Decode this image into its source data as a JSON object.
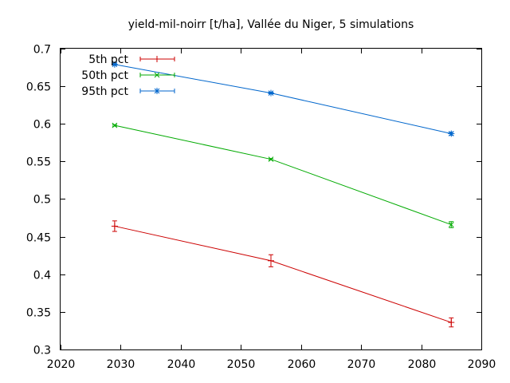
{
  "chart_data": {
    "type": "line",
    "title": "yield-mil-noirr [t/ha], Vallée du Niger, 5 simulations",
    "xlabel": "",
    "ylabel": "",
    "xlim": [
      2020,
      2090
    ],
    "ylim": [
      0.3,
      0.7
    ],
    "xticks": [
      "2020",
      "2030",
      "2040",
      "2050",
      "2060",
      "2070",
      "2080",
      "2090"
    ],
    "yticks": [
      "0.3",
      "0.35",
      "0.4",
      "0.45",
      "0.5",
      "0.55",
      "0.6",
      "0.65",
      "0.7"
    ],
    "grid": false,
    "legend_position": "top-left",
    "x": [
      2029,
      2055,
      2085
    ],
    "series": [
      {
        "name": "5th pct",
        "color": "#cc0000",
        "marker": "plus",
        "values": [
          0.464,
          0.418,
          0.336
        ],
        "errors": [
          0.007,
          0.008,
          0.006
        ]
      },
      {
        "name": "50th pct",
        "color": "#00aa00",
        "marker": "cross",
        "values": [
          0.598,
          0.553,
          0.466
        ],
        "errors": [
          0.001,
          0.001,
          0.004
        ]
      },
      {
        "name": "95th pct",
        "color": "#0066cc",
        "marker": "star",
        "values": [
          0.679,
          0.641,
          0.587
        ],
        "errors": [
          0.001,
          0.001,
          0.002
        ]
      }
    ]
  }
}
